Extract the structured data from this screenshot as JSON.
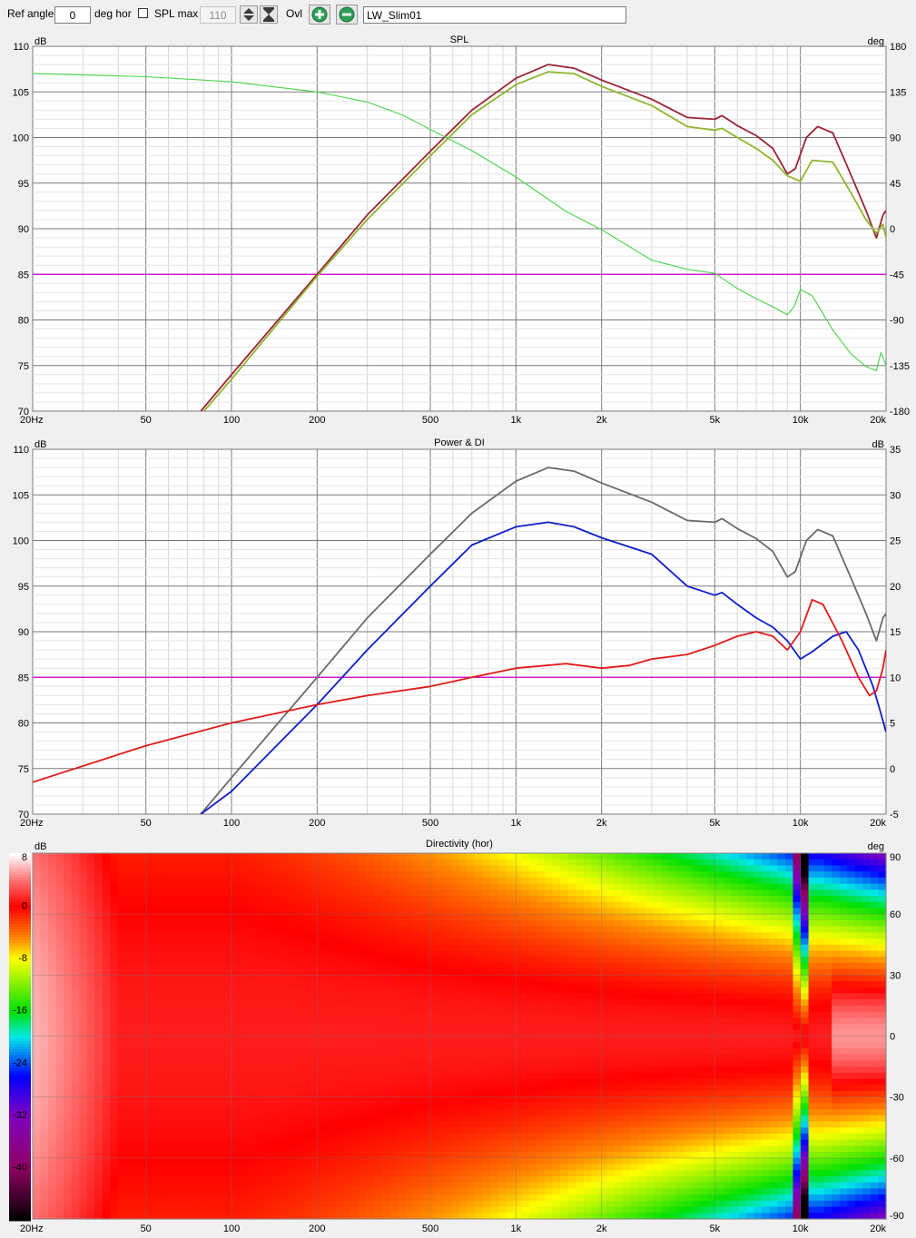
{
  "toolbar": {
    "ref_angle_label": "Ref angle",
    "ref_angle_value": "0",
    "deg_hor_label": "deg hor",
    "spl_max_label": "SPL max",
    "spl_max_checked": false,
    "spl_max_value": "110",
    "ovl_label": "Ovl",
    "name_value": "LW_Slim01"
  },
  "colors": {
    "on_axis": "#9b2335",
    "listening_window": "#8fb52c",
    "phase": "#47d447",
    "reference": "#d400d4",
    "sound_power": "#6a6a6a",
    "power_blue": "#0d1ec8",
    "di": "#e01a1a"
  },
  "x_ticks": [
    {
      "v": 20,
      "label": "20Hz"
    },
    {
      "v": 50,
      "label": "50"
    },
    {
      "v": 100,
      "label": "100"
    },
    {
      "v": 200,
      "label": "200"
    },
    {
      "v": 500,
      "label": "500"
    },
    {
      "v": 1000,
      "label": "1k"
    },
    {
      "v": 2000,
      "label": "2k"
    },
    {
      "v": 5000,
      "label": "5k"
    },
    {
      "v": 10000,
      "label": "10k"
    },
    {
      "v": 20000,
      "label": "20k"
    }
  ],
  "chart_data": [
    {
      "type": "line",
      "title": "SPL",
      "x_scale": "log",
      "xlim": [
        20,
        20000
      ],
      "ylim": [
        70,
        110
      ],
      "y2lim": [
        -180,
        180
      ],
      "ylabel": "dB",
      "y2label": "deg",
      "y_ticks": [
        70,
        75,
        80,
        85,
        90,
        95,
        100,
        105,
        110
      ],
      "y2_ticks": [
        -180,
        -135,
        -90,
        -45,
        0,
        45,
        90,
        135,
        180
      ],
      "reference_line_db": 85,
      "grid": true,
      "series": [
        {
          "color_key": "on_axis",
          "axis": "left",
          "points": [
            [
              78,
              70
            ],
            [
              100,
              74
            ],
            [
              200,
              85
            ],
            [
              300,
              91.5
            ],
            [
              500,
              98.5
            ],
            [
              700,
              103
            ],
            [
              1000,
              106.5
            ],
            [
              1300,
              108
            ],
            [
              1600,
              107.6
            ],
            [
              2000,
              106.3
            ],
            [
              3000,
              104.2
            ],
            [
              4000,
              102.2
            ],
            [
              5000,
              102
            ],
            [
              5300,
              102.4
            ],
            [
              6000,
              101.3
            ],
            [
              7000,
              100.2
            ],
            [
              8000,
              98.8
            ],
            [
              9000,
              96
            ],
            [
              9600,
              96.6
            ],
            [
              10500,
              100
            ],
            [
              11500,
              101.2
            ],
            [
              13000,
              100.5
            ],
            [
              15000,
              96
            ],
            [
              17000,
              92
            ],
            [
              18500,
              89
            ],
            [
              19500,
              91.5
            ],
            [
              20000,
              92
            ]
          ]
        },
        {
          "color_key": "listening_window",
          "axis": "left",
          "points": [
            [
              80,
              70
            ],
            [
              100,
              73.5
            ],
            [
              200,
              84.8
            ],
            [
              300,
              91
            ],
            [
              500,
              98
            ],
            [
              700,
              102.5
            ],
            [
              1000,
              105.8
            ],
            [
              1300,
              107.2
            ],
            [
              1600,
              107
            ],
            [
              2000,
              105.6
            ],
            [
              3000,
              103.5
            ],
            [
              4000,
              101.2
            ],
            [
              5000,
              100.8
            ],
            [
              5300,
              101
            ],
            [
              6000,
              100
            ],
            [
              7000,
              98.8
            ],
            [
              8000,
              97.5
            ],
            [
              9000,
              95.8
            ],
            [
              10000,
              95.2
            ],
            [
              11000,
              97.5
            ],
            [
              13000,
              97.3
            ],
            [
              15000,
              94
            ],
            [
              17000,
              91
            ],
            [
              18500,
              89.5
            ],
            [
              19500,
              90.5
            ],
            [
              20000,
              89
            ]
          ]
        },
        {
          "color_key": "phase",
          "axis": "right",
          "points": [
            [
              20,
              153
            ],
            [
              50,
              150
            ],
            [
              100,
              145
            ],
            [
              200,
              135
            ],
            [
              300,
              125
            ],
            [
              400,
              112
            ],
            [
              500,
              98
            ],
            [
              700,
              77
            ],
            [
              1000,
              51
            ],
            [
              1500,
              17
            ],
            [
              2000,
              -1
            ],
            [
              3000,
              -31
            ],
            [
              4000,
              -40
            ],
            [
              5000,
              -44
            ],
            [
              6000,
              -59
            ],
            [
              7000,
              -69
            ],
            [
              8000,
              -77
            ],
            [
              9000,
              -85
            ],
            [
              9500,
              -77
            ],
            [
              10000,
              -60
            ],
            [
              11000,
              -66
            ],
            [
              13000,
              -100
            ],
            [
              15000,
              -123
            ],
            [
              17000,
              -136
            ],
            [
              18500,
              -140
            ],
            [
              19200,
              -122
            ],
            [
              20000,
              -135
            ]
          ]
        }
      ]
    },
    {
      "type": "line",
      "title": "Power & DI",
      "x_scale": "log",
      "xlim": [
        20,
        20000
      ],
      "ylim": [
        70,
        110
      ],
      "y2lim": [
        -5,
        35
      ],
      "ylabel": "dB",
      "y2label": "dB",
      "y_ticks": [
        70,
        75,
        80,
        85,
        90,
        95,
        100,
        105,
        110
      ],
      "y2_ticks": [
        -5,
        0,
        5,
        10,
        15,
        20,
        25,
        30,
        35
      ],
      "reference_line_db": 85,
      "grid": true,
      "series": [
        {
          "color_key": "sound_power",
          "axis": "left",
          "points": [
            [
              78,
              70
            ],
            [
              100,
              74
            ],
            [
              200,
              85
            ],
            [
              300,
              91.5
            ],
            [
              500,
              98.5
            ],
            [
              700,
              103
            ],
            [
              1000,
              106.5
            ],
            [
              1300,
              108
            ],
            [
              1600,
              107.6
            ],
            [
              2000,
              106.3
            ],
            [
              3000,
              104.2
            ],
            [
              4000,
              102.2
            ],
            [
              5000,
              102
            ],
            [
              5300,
              102.4
            ],
            [
              6000,
              101.3
            ],
            [
              7000,
              100.2
            ],
            [
              8000,
              98.8
            ],
            [
              9000,
              96
            ],
            [
              9600,
              96.6
            ],
            [
              10500,
              100
            ],
            [
              11500,
              101.2
            ],
            [
              13000,
              100.5
            ],
            [
              15000,
              96
            ],
            [
              17000,
              92
            ],
            [
              18500,
              89
            ],
            [
              19500,
              91.5
            ],
            [
              20000,
              92
            ]
          ]
        },
        {
          "color_key": "power_blue",
          "axis": "left",
          "points": [
            [
              78,
              70
            ],
            [
              100,
              72.5
            ],
            [
              200,
              82
            ],
            [
              300,
              88
            ],
            [
              500,
              95
            ],
            [
              700,
              99.5
            ],
            [
              1000,
              101.5
            ],
            [
              1300,
              102
            ],
            [
              1600,
              101.5
            ],
            [
              2000,
              100.3
            ],
            [
              3000,
              98.5
            ],
            [
              4000,
              95
            ],
            [
              5000,
              94
            ],
            [
              5300,
              94.3
            ],
            [
              6000,
              93
            ],
            [
              7000,
              91.5
            ],
            [
              8000,
              90.5
            ],
            [
              9000,
              89
            ],
            [
              10000,
              87
            ],
            [
              11000,
              87.8
            ],
            [
              13000,
              89.5
            ],
            [
              14500,
              90
            ],
            [
              16000,
              88
            ],
            [
              18000,
              84
            ],
            [
              19000,
              81.5
            ],
            [
              20000,
              79
            ]
          ]
        },
        {
          "color_key": "di",
          "axis": "right",
          "points": [
            [
              20,
              -1.5
            ],
            [
              50,
              2.5
            ],
            [
              100,
              5
            ],
            [
              200,
              7
            ],
            [
              300,
              8
            ],
            [
              500,
              9
            ],
            [
              700,
              10
            ],
            [
              1000,
              11
            ],
            [
              1500,
              11.5
            ],
            [
              2000,
              11
            ],
            [
              2500,
              11.3
            ],
            [
              3000,
              12
            ],
            [
              4000,
              12.5
            ],
            [
              5000,
              13.5
            ],
            [
              6000,
              14.5
            ],
            [
              7000,
              15
            ],
            [
              8000,
              14.5
            ],
            [
              9000,
              13
            ],
            [
              10000,
              15
            ],
            [
              11000,
              18.5
            ],
            [
              12000,
              18
            ],
            [
              14000,
              14
            ],
            [
              16000,
              10
            ],
            [
              17500,
              8
            ],
            [
              18500,
              8.5
            ],
            [
              19500,
              11
            ],
            [
              20000,
              13
            ]
          ]
        }
      ]
    },
    {
      "type": "heatmap",
      "title": "Directivity (hor)",
      "x_scale": "log",
      "xlim": [
        20,
        20000
      ],
      "ylim": [
        -90,
        90
      ],
      "ylabel": "dB",
      "y2label": "deg",
      "y2_ticks": [
        -90,
        -60,
        -30,
        0,
        30,
        60,
        90
      ],
      "colorbar_range": [
        -48,
        8
      ],
      "colorbar_ticks": [
        8,
        0,
        -8,
        -16,
        -24,
        -32,
        -40,
        -48
      ],
      "colorbar_stops": [
        {
          "v": 8,
          "color": "#ffffff"
        },
        {
          "v": 4,
          "color": "#ff7070"
        },
        {
          "v": 0,
          "color": "#ff0000"
        },
        {
          "v": -5,
          "color": "#ff8c00"
        },
        {
          "v": -8,
          "color": "#ffff00"
        },
        {
          "v": -16,
          "color": "#00e000"
        },
        {
          "v": -20,
          "color": "#00e8e8"
        },
        {
          "v": -26,
          "color": "#0000ff"
        },
        {
          "v": -32,
          "color": "#8000c0"
        },
        {
          "v": -40,
          "color": "#900060"
        },
        {
          "v": -48,
          "color": "#000000"
        }
      ]
    }
  ]
}
